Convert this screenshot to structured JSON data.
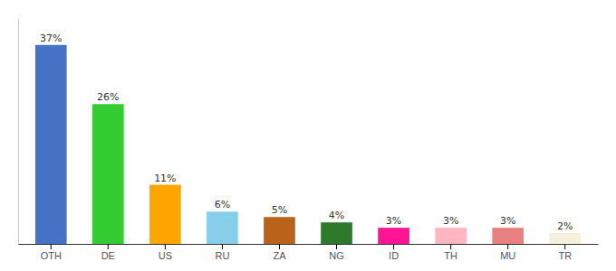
{
  "chart_data": {
    "type": "bar",
    "categories": [
      "OTH",
      "DE",
      "US",
      "RU",
      "ZA",
      "NG",
      "ID",
      "TH",
      "MU",
      "TR"
    ],
    "values": [
      37,
      26,
      11,
      6,
      5,
      4,
      3,
      3,
      3,
      2
    ],
    "value_labels": [
      "37%",
      "26%",
      "11%",
      "6%",
      "5%",
      "4%",
      "3%",
      "3%",
      "3%",
      "2%"
    ],
    "colors": [
      "#4472C4",
      "#33CC33",
      "#FFA500",
      "#87CEEB",
      "#B8621A",
      "#2D7A2D",
      "#FF1493",
      "#FFB6C1",
      "#E88080",
      "#F5F0DC"
    ],
    "ylim": [
      0,
      42
    ],
    "data_labels": true,
    "tick_labels": "x",
    "grid": false
  }
}
